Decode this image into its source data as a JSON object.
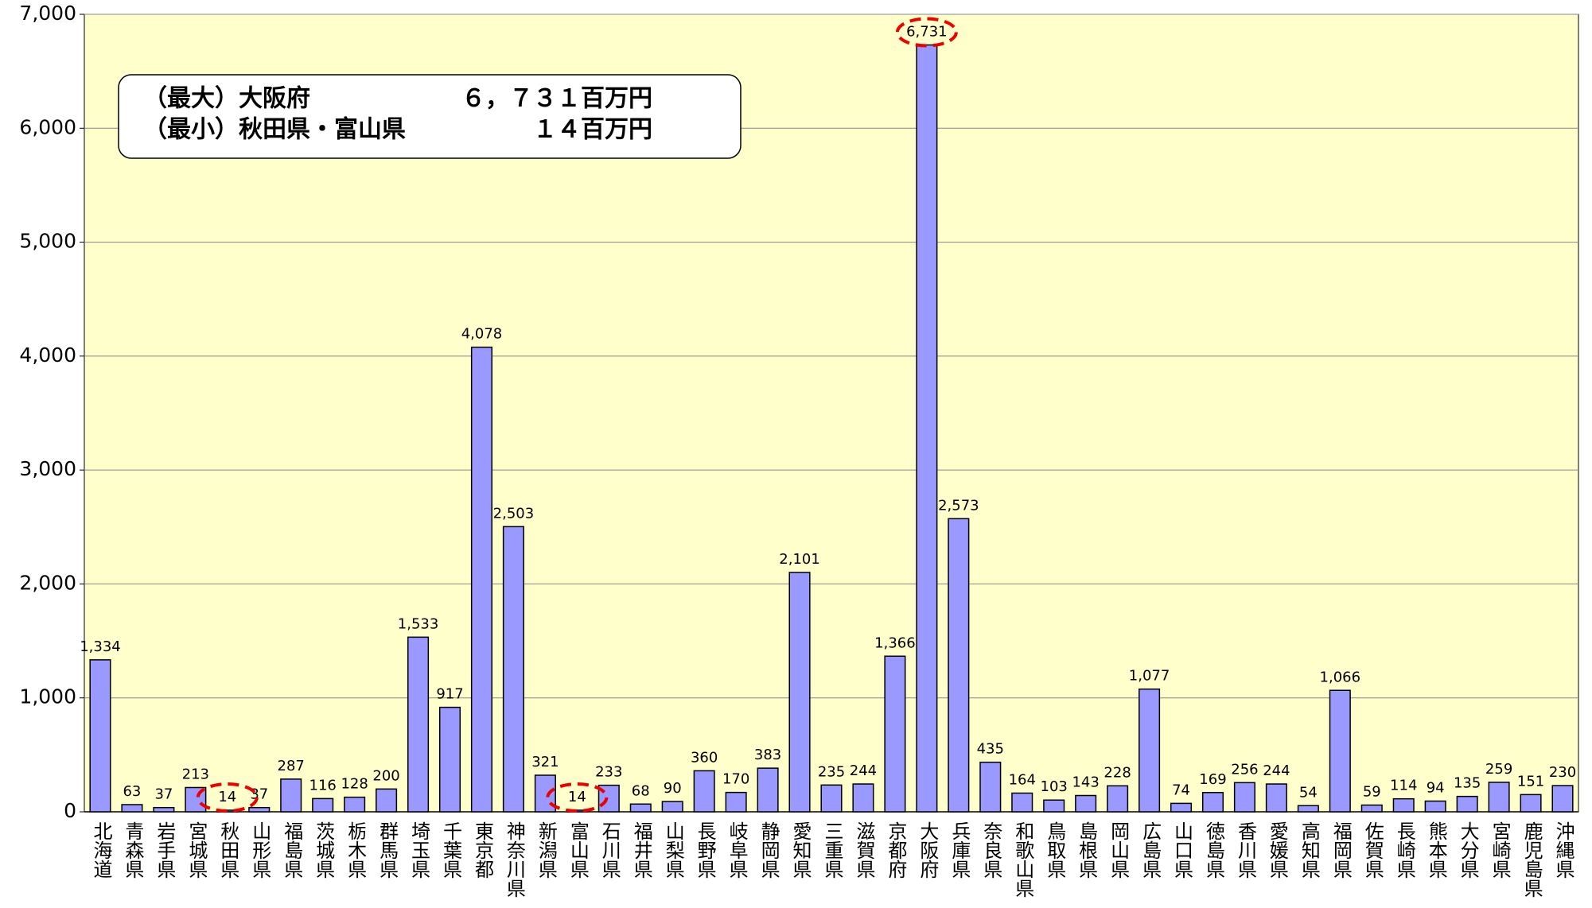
{
  "chart_data": {
    "type": "bar",
    "annotations": [
      "（最大）大阪府",
      "６，７３１百万円",
      "（最小）秋田県・富山県",
      "１４百万円"
    ],
    "categories": [
      "北海道",
      "青森県",
      "岩手県",
      "宮城県",
      "秋田県",
      "山形県",
      "福島県",
      "茨城県",
      "栃木県",
      "群馬県",
      "埼玉県",
      "千葉県",
      "東京都",
      "神奈川県",
      "新潟県",
      "富山県",
      "石川県",
      "福井県",
      "山梨県",
      "長野県",
      "岐阜県",
      "静岡県",
      "愛知県",
      "三重県",
      "滋賀県",
      "京都府",
      "大阪府",
      "兵庫県",
      "奈良県",
      "和歌山県",
      "鳥取県",
      "島根県",
      "岡山県",
      "広島県",
      "山口県",
      "徳島県",
      "香川県",
      "愛媛県",
      "高知県",
      "福岡県",
      "佐賀県",
      "長崎県",
      "熊本県",
      "大分県",
      "宮崎県",
      "鹿児島県",
      "沖縄県"
    ],
    "values": [
      1334,
      63,
      37,
      213,
      14,
      37,
      287,
      116,
      128,
      200,
      1533,
      917,
      4078,
      2503,
      321,
      14,
      233,
      68,
      90,
      360,
      170,
      383,
      2101,
      235,
      244,
      1366,
      6731,
      2573,
      435,
      164,
      103,
      143,
      228,
      1077,
      74,
      169,
      256,
      244,
      54,
      1066,
      59,
      114,
      94,
      135,
      259,
      151,
      230
    ],
    "value_labels": [
      "1,334",
      "63",
      "37",
      "213",
      "14",
      "37",
      "287",
      "116",
      "128",
      "200",
      "1,533",
      "917",
      "4,078",
      "2,503",
      "321",
      "14",
      "233",
      "68",
      "90",
      "360",
      "170",
      "383",
      "2,101",
      "235",
      "244",
      "1,366",
      "6,731",
      "2,573",
      "435",
      "164",
      "103",
      "143",
      "228",
      "1,077",
      "74",
      "169",
      "256",
      "244",
      "54",
      "1,066",
      "59",
      "114",
      "94",
      "135",
      "259",
      "151",
      "230"
    ],
    "color": "#9999ff",
    "ylim": [
      0,
      7000
    ],
    "yticks": [
      0,
      {
        "value": 1000,
        "label": "1,000"
      },
      {
        "value": 2000,
        "label": "2,000"
      },
      {
        "value": 3000,
        "label": "3,000"
      },
      {
        "value": 4000,
        "label": "4,000"
      },
      {
        "value": 5000,
        "label": "5,000"
      },
      {
        "value": 6000,
        "label": "6,000"
      },
      {
        "value": 7000,
        "label": "7,000"
      }
    ],
    "grid": true
  }
}
